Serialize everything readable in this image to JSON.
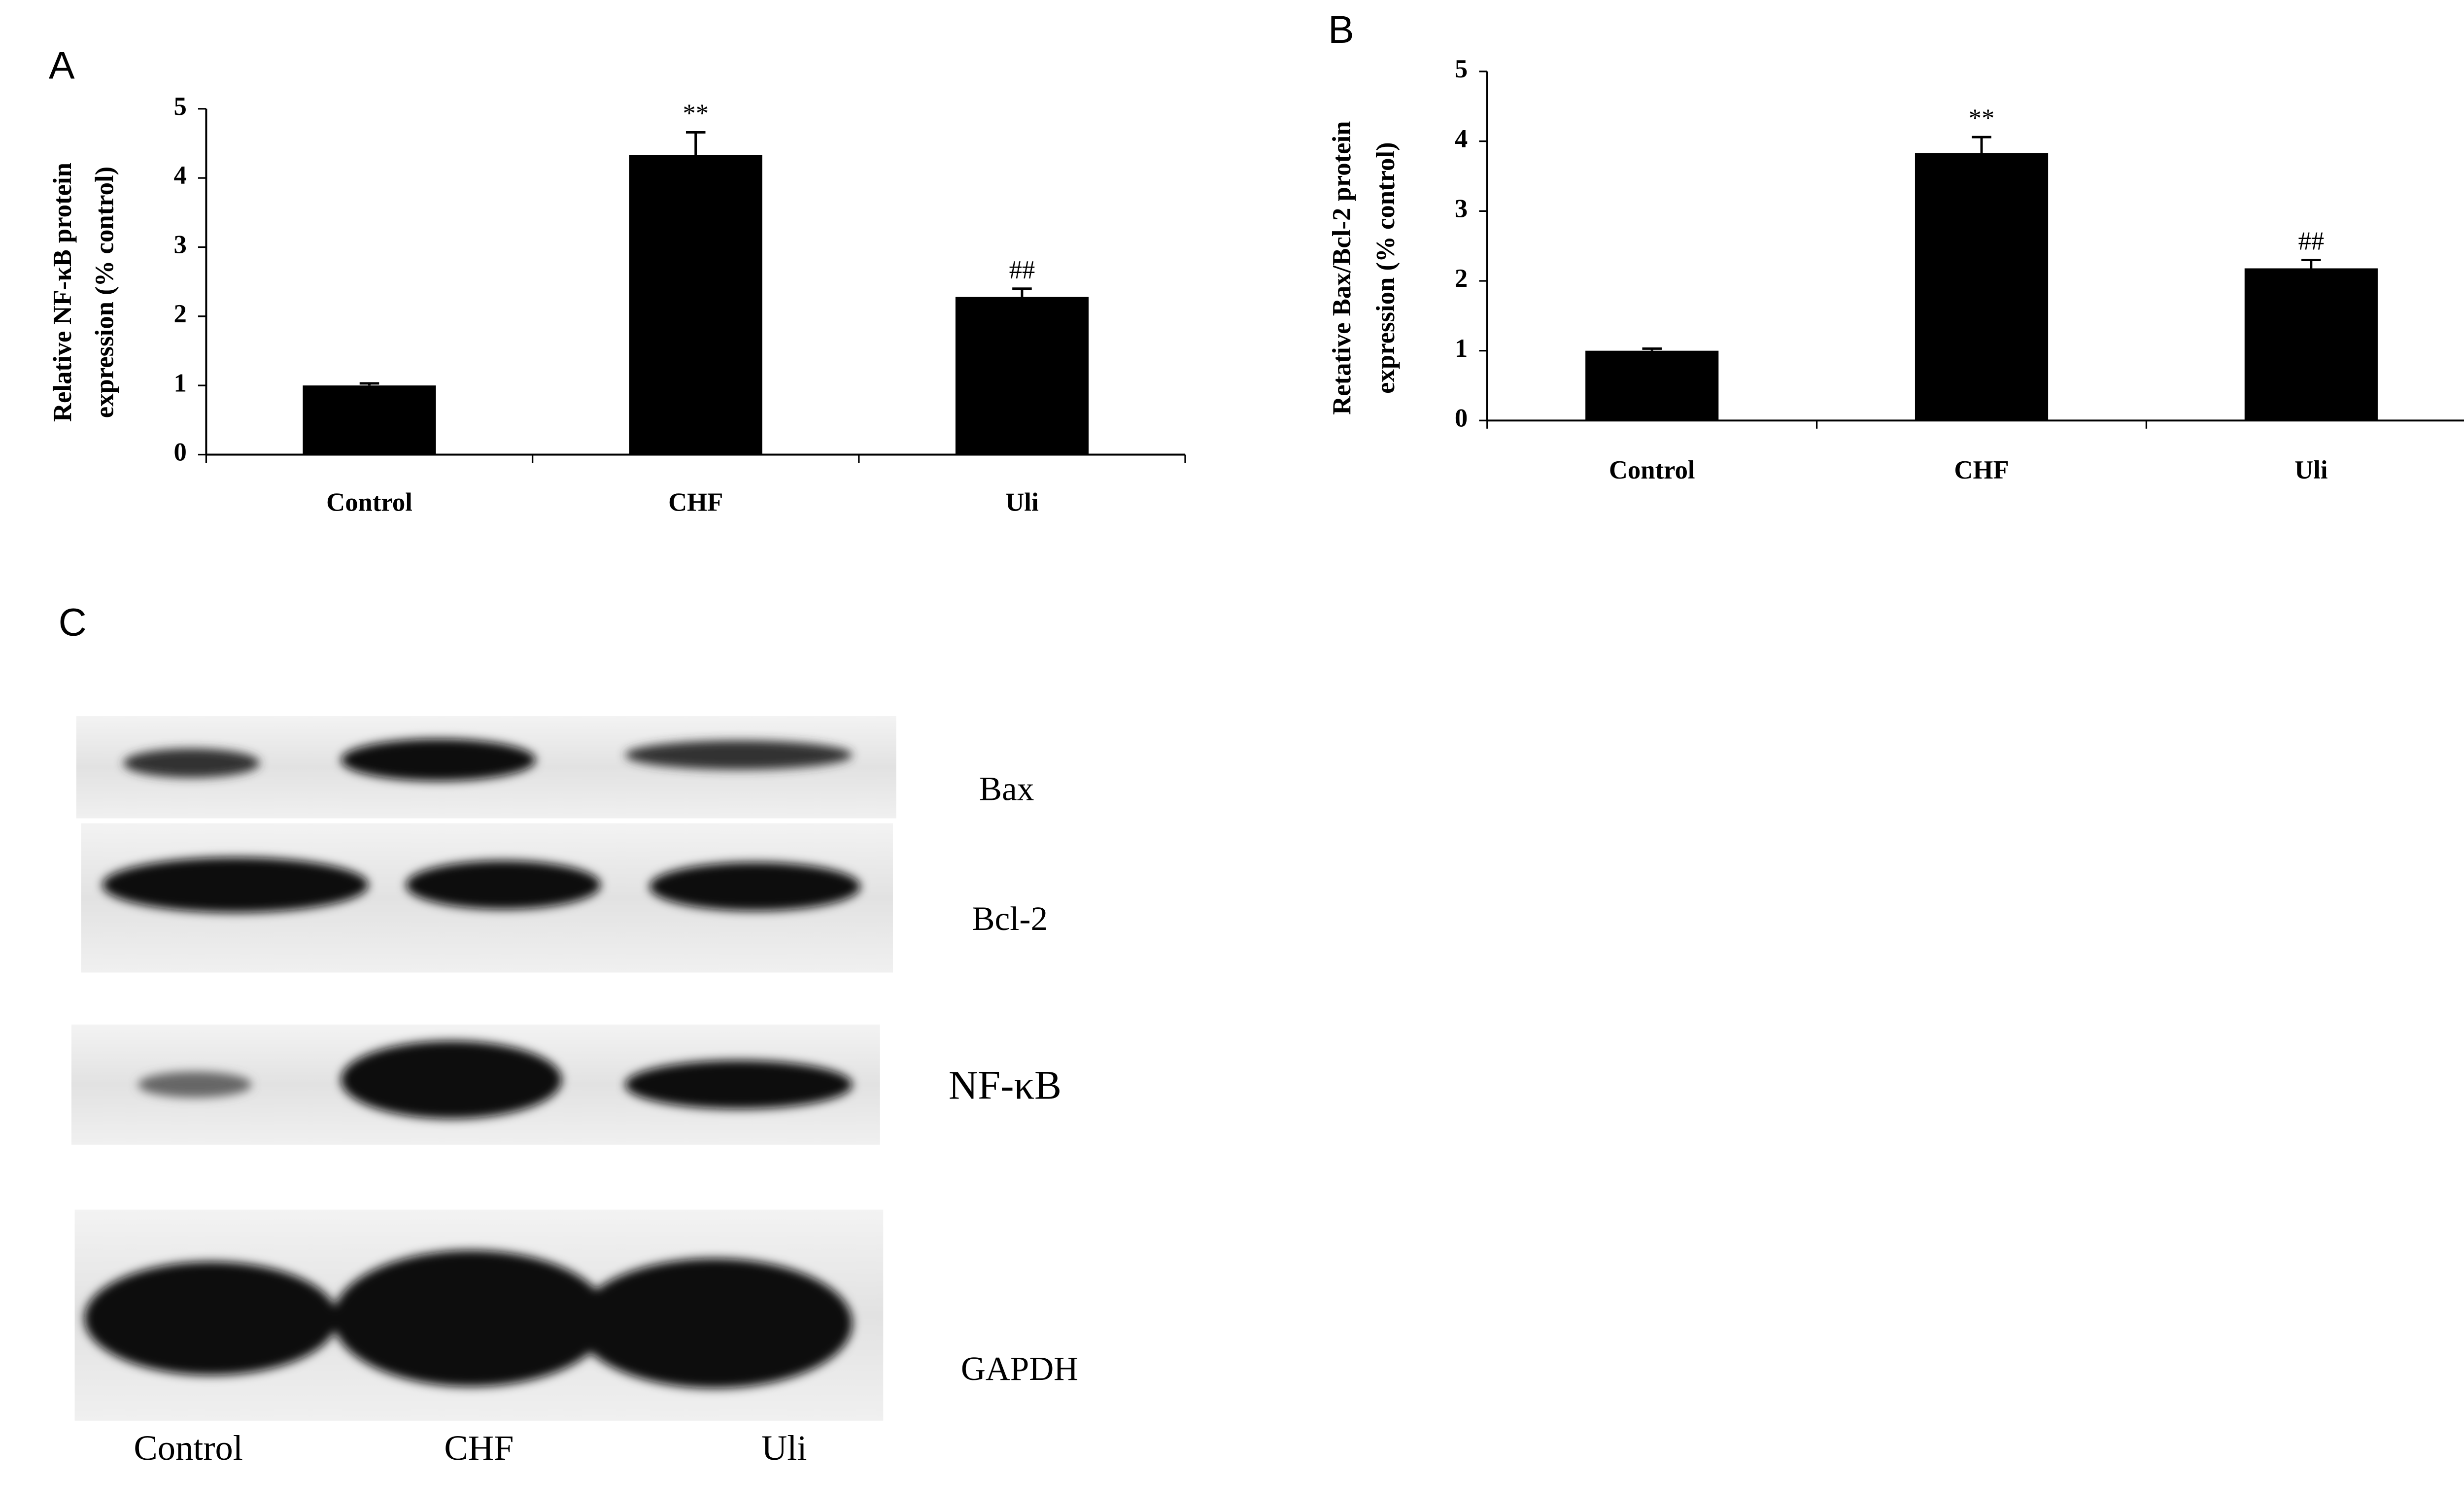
{
  "chart_data": [
    {
      "type": "bar",
      "panel_label": "A",
      "ylabel": [
        "Relative NF-κB protein",
        "expression (% control)"
      ],
      "categories": [
        "Control",
        "CHF",
        "Uli"
      ],
      "values": [
        1.0,
        4.33,
        2.28
      ],
      "errors": [
        0.03,
        0.33,
        0.12
      ],
      "annotations": [
        null,
        "**",
        "##"
      ],
      "color": "#000000",
      "ylim": [
        0,
        5
      ],
      "yticks": [
        0,
        1,
        2,
        3,
        4,
        5
      ]
    },
    {
      "type": "bar",
      "panel_label": "B",
      "ylabel": [
        "Retative Bax/Bcl-2 protein",
        "expression (% control)"
      ],
      "categories": [
        "Control",
        "CHF",
        "Uli"
      ],
      "values": [
        1.0,
        3.83,
        2.18
      ],
      "errors": [
        0.03,
        0.23,
        0.12
      ],
      "annotations": [
        null,
        "**",
        "##"
      ],
      "color": "#000000",
      "ylim": [
        0,
        5
      ],
      "yticks": [
        0,
        1,
        2,
        3,
        4,
        5
      ]
    }
  ],
  "blot": {
    "panel_label": "C",
    "bands": [
      "Bax",
      "Bcl-2",
      "NF-κB",
      "GAPDH"
    ],
    "lanes": [
      "Control",
      "CHF",
      "Uli"
    ]
  }
}
